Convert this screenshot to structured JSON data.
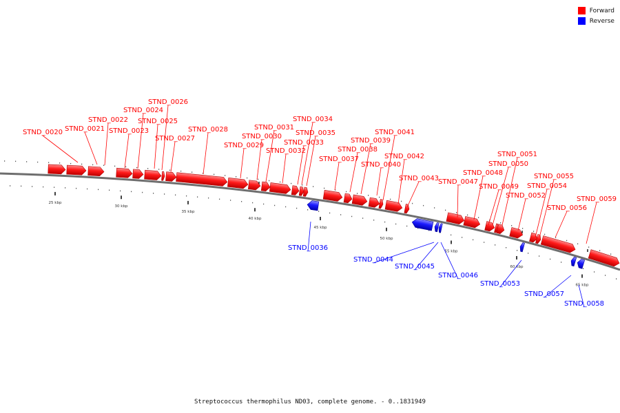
{
  "legend": {
    "forward": {
      "label": "Forward",
      "color": "#ff0000"
    },
    "reverse": {
      "label": "Reverse",
      "color": "#0000ff"
    }
  },
  "caption": "Streptococcus thermophilus ND03, complete genome. - 0..1831949",
  "scale_ticks": [
    "25 kbp",
    "30 kbp",
    "35 kbp",
    "40 kbp",
    "45 kbp",
    "50 kbp",
    "55 kbp",
    "60 kbp",
    "65 kbp"
  ],
  "genes": [
    {
      "name": "STND_0020",
      "strand": "forward"
    },
    {
      "name": "STND_0021",
      "strand": "forward"
    },
    {
      "name": "STND_0022",
      "strand": "forward"
    },
    {
      "name": "STND_0023",
      "strand": "forward"
    },
    {
      "name": "STND_0024",
      "strand": "forward"
    },
    {
      "name": "STND_0025",
      "strand": "forward"
    },
    {
      "name": "STND_0026",
      "strand": "forward"
    },
    {
      "name": "STND_0027",
      "strand": "forward"
    },
    {
      "name": "STND_0028",
      "strand": "forward"
    },
    {
      "name": "STND_0029",
      "strand": "forward"
    },
    {
      "name": "STND_0030",
      "strand": "forward"
    },
    {
      "name": "STND_0031",
      "strand": "forward"
    },
    {
      "name": "STND_0032",
      "strand": "forward"
    },
    {
      "name": "STND_0033",
      "strand": "forward"
    },
    {
      "name": "STND_0034",
      "strand": "forward"
    },
    {
      "name": "STND_0035",
      "strand": "forward"
    },
    {
      "name": "STND_0036",
      "strand": "reverse"
    },
    {
      "name": "STND_0037",
      "strand": "forward"
    },
    {
      "name": "STND_0038",
      "strand": "forward"
    },
    {
      "name": "STND_0039",
      "strand": "forward"
    },
    {
      "name": "STND_0040",
      "strand": "forward"
    },
    {
      "name": "STND_0041",
      "strand": "forward"
    },
    {
      "name": "STND_0042",
      "strand": "forward"
    },
    {
      "name": "STND_0043",
      "strand": "forward"
    },
    {
      "name": "STND_0044",
      "strand": "reverse"
    },
    {
      "name": "STND_0045",
      "strand": "reverse"
    },
    {
      "name": "STND_0046",
      "strand": "reverse"
    },
    {
      "name": "STND_0047",
      "strand": "forward"
    },
    {
      "name": "STND_0048",
      "strand": "forward"
    },
    {
      "name": "STND_0049",
      "strand": "forward"
    },
    {
      "name": "STND_0050",
      "strand": "forward"
    },
    {
      "name": "STND_0051",
      "strand": "forward"
    },
    {
      "name": "STND_0052",
      "strand": "forward"
    },
    {
      "name": "STND_0053",
      "strand": "reverse"
    },
    {
      "name": "STND_0054",
      "strand": "forward"
    },
    {
      "name": "STND_0055",
      "strand": "forward"
    },
    {
      "name": "STND_0056",
      "strand": "forward"
    },
    {
      "name": "STND_0057",
      "strand": "reverse"
    },
    {
      "name": "STND_0058",
      "strand": "reverse"
    },
    {
      "name": "STND_0059",
      "strand": "forward"
    }
  ]
}
